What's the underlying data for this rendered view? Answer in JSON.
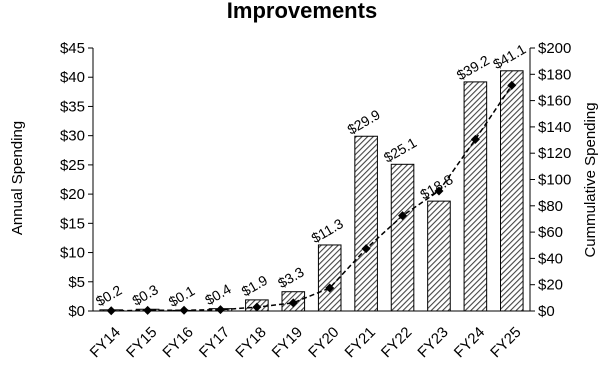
{
  "chart_data": {
    "type": "bar",
    "title": "Improvements",
    "categories": [
      "FY14",
      "FY15",
      "FY16",
      "FY17",
      "FY18",
      "FY19",
      "FY20",
      "FY21",
      "FY22",
      "FY23",
      "FY24",
      "FY25"
    ],
    "series": [
      {
        "type": "bar",
        "axis": "left",
        "values": [
          0.2,
          0.3,
          0.1,
          0.4,
          1.9,
          3.3,
          11.3,
          29.9,
          25.1,
          18.8,
          39.2,
          41.1
        ],
        "labels": [
          "$0.2",
          "$0.3",
          "$0.1",
          "$0.4",
          "$1.9",
          "$3.3",
          "$11.3",
          "$29.9",
          "$25.1",
          "$18.8",
          "$39.2",
          "$41.1"
        ],
        "pattern": "diagonal-hatch",
        "color": "#000000"
      },
      {
        "type": "line",
        "axis": "right",
        "style": "dashed",
        "marker": "diamond",
        "values": [
          0.2,
          0.5,
          0.6,
          1.0,
          2.9,
          6.2,
          17.5,
          47.4,
          72.5,
          91.3,
          130.5,
          171.6
        ],
        "color": "#000000"
      }
    ],
    "ylabel": "Annual Spending",
    "y2label": "Cummulative Spending",
    "ylim": [
      0,
      45
    ],
    "y2lim": [
      0,
      200
    ],
    "yticks": [
      "$0",
      "$5",
      "$10",
      "$15",
      "$20",
      "$25",
      "$30",
      "$35",
      "$40",
      "$45"
    ],
    "y2ticks": [
      "$0",
      "$20",
      "$40",
      "$60",
      "$80",
      "$100",
      "$120",
      "$140",
      "$160",
      "$180",
      "$200"
    ],
    "grid": false,
    "legend": "none"
  }
}
